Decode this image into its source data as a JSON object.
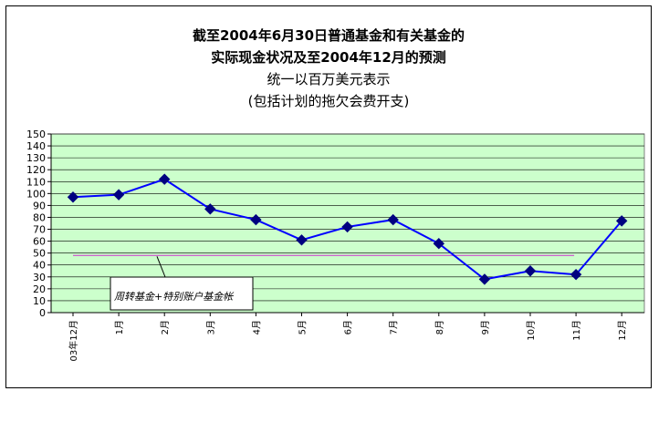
{
  "title_lines": [
    "截至2004年6月30日普通基金和有关基金的",
    "实际现金状况及至2004年12月的预测",
    "统一以百万美元表示",
    "(包括计划的拖欠会费开支)"
  ],
  "colors": {
    "plot_bg": "#ccffcc",
    "grid": "#000000",
    "line": "#0000ff",
    "marker": "#000080",
    "reference_line": "#cc66cc"
  },
  "chart_data": {
    "type": "line",
    "title": "截至2004年6月30日普通基金和有关基金的实际现金状况及至2004年12月的预测 统一以百万美元表示 (包括计划的拖欠会费开支)",
    "xlabel": "",
    "ylabel": "",
    "ylim": [
      0,
      150
    ],
    "yticks": [
      0,
      10,
      20,
      30,
      40,
      50,
      60,
      70,
      80,
      90,
      100,
      110,
      120,
      130,
      140,
      150
    ],
    "grid": true,
    "categories": [
      "03年12月",
      "1月",
      "2月",
      "3月",
      "4月",
      "5月",
      "6月",
      "7月",
      "8月",
      "9月",
      "10月",
      "11月",
      "12月"
    ],
    "series": [
      {
        "name": "",
        "x": [
          0,
          1,
          2,
          3,
          4,
          5,
          6,
          7,
          8,
          9,
          10,
          11,
          12
        ],
        "values": [
          97,
          99,
          112,
          87,
          78,
          61,
          72,
          78,
          58,
          28,
          35,
          32,
          77
        ]
      }
    ],
    "reference_line": {
      "value": 48,
      "label": "周转基金+特别账户基金帐"
    }
  }
}
